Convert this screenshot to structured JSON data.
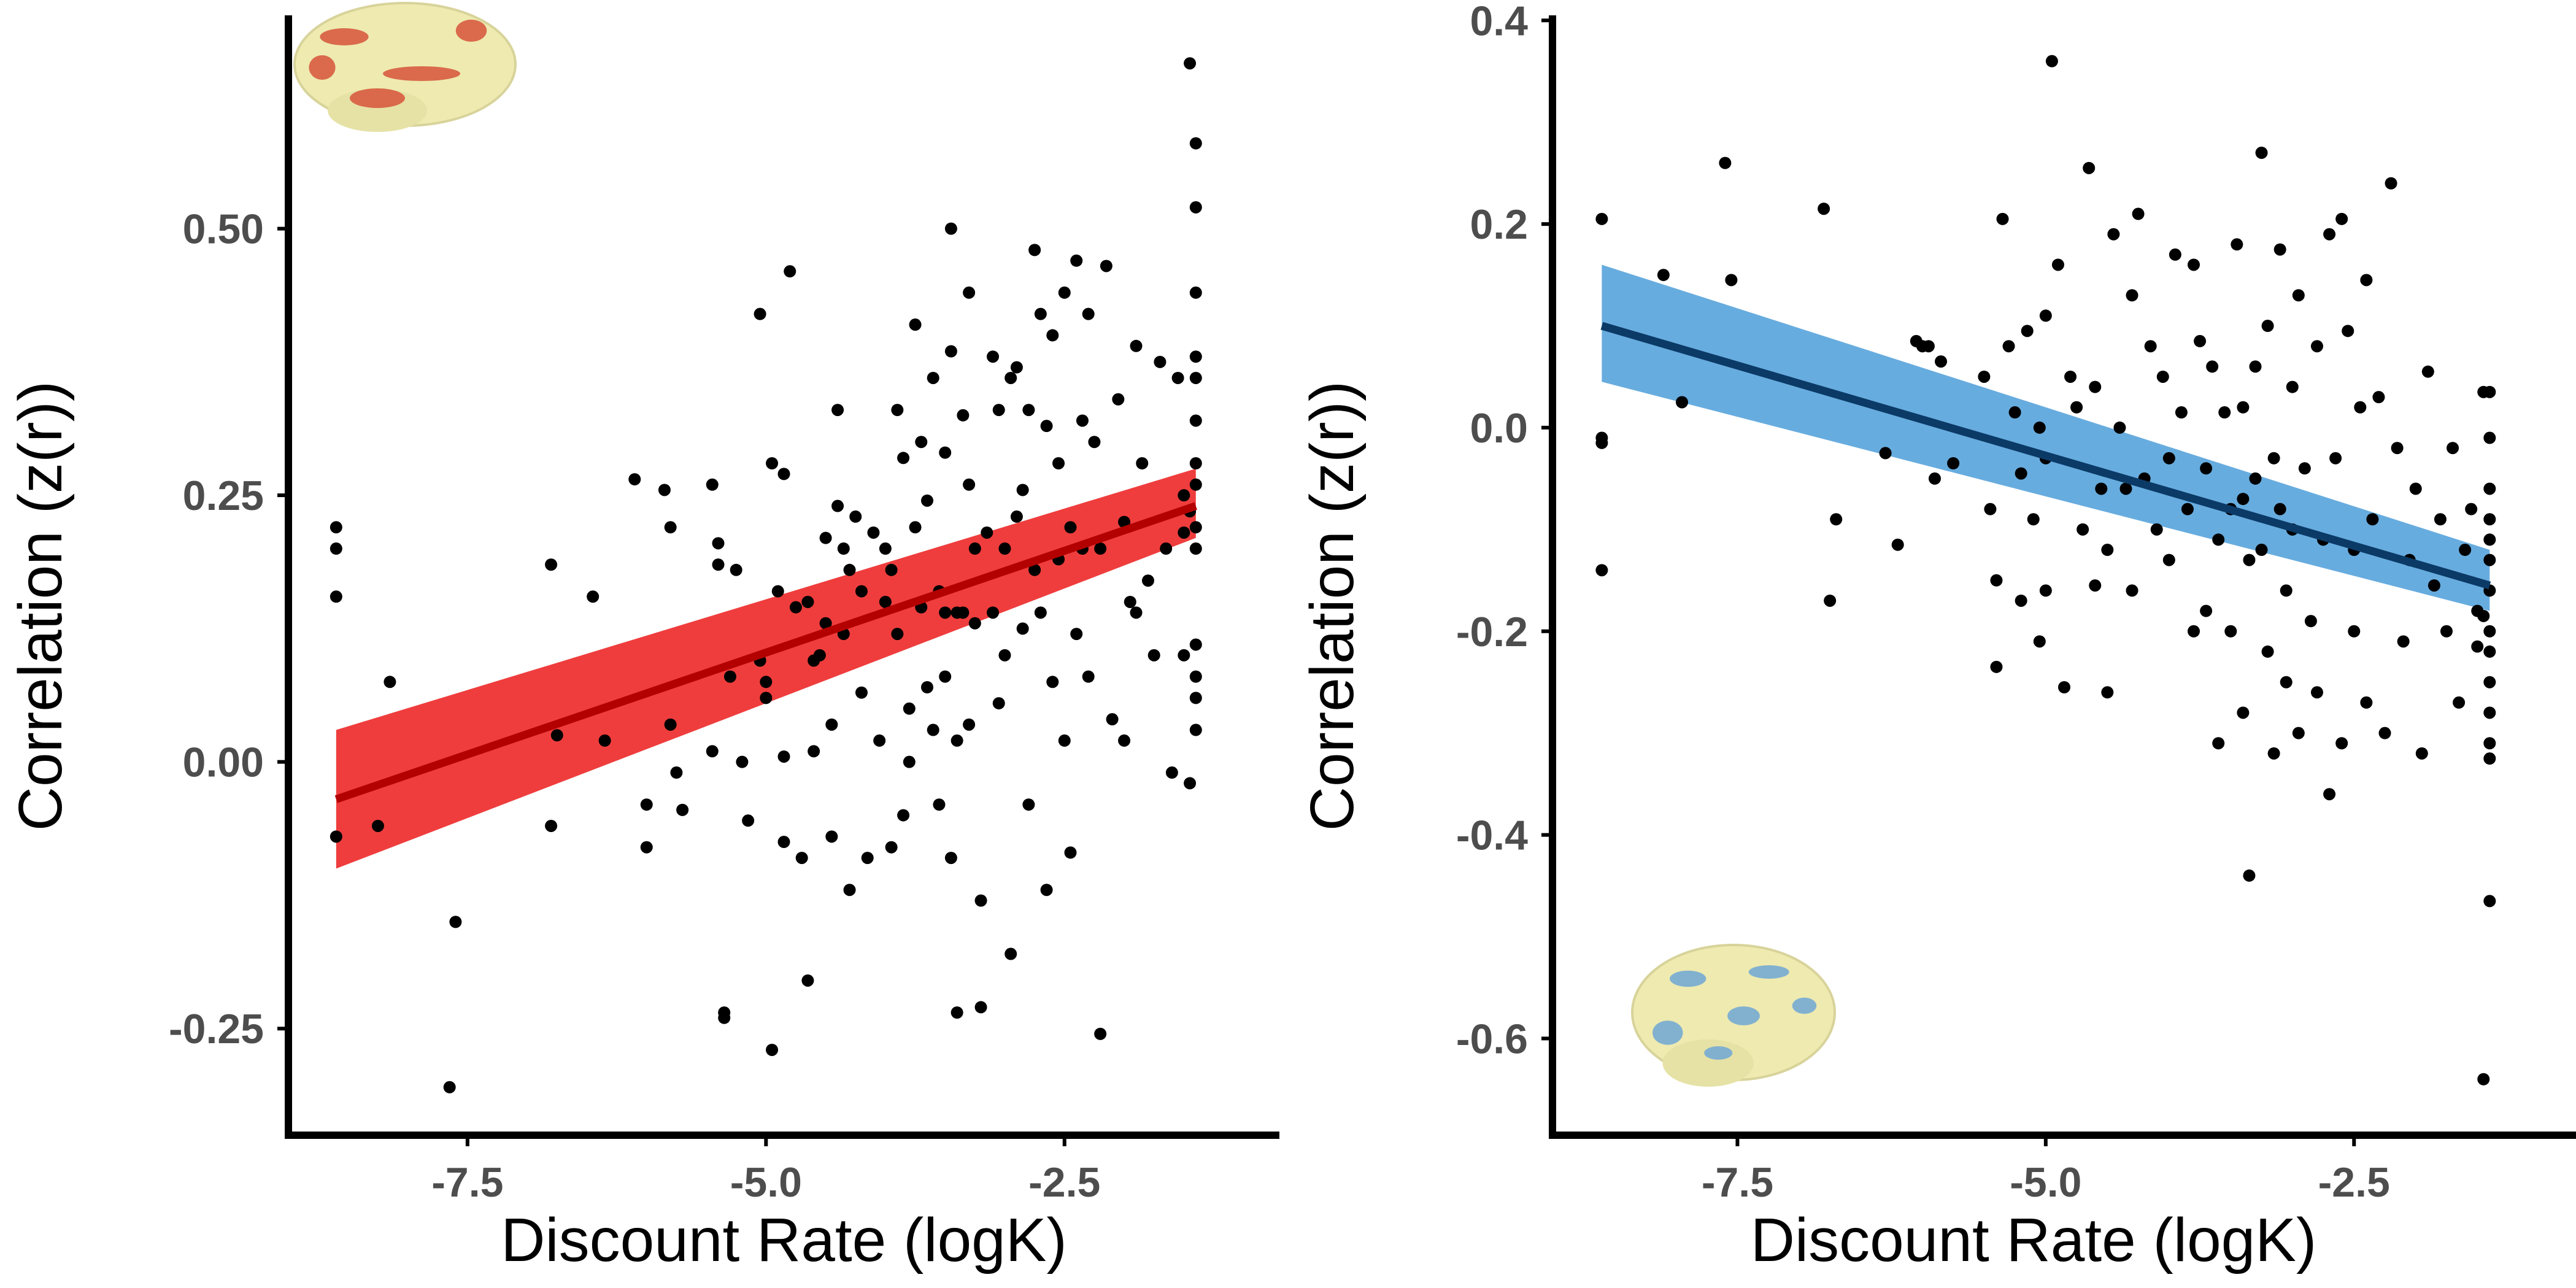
{
  "chart_data": [
    {
      "type": "scatter",
      "panel": "left",
      "xlabel": "Discount Rate (logK)",
      "ylabel": "Correlation (z(r))",
      "xlim": [
        -9.0,
        -0.7
      ],
      "ylim": [
        -0.35,
        0.7
      ],
      "xticks": [
        -7.5,
        -5.0,
        -2.5
      ],
      "xtick_labels": [
        "-7.5",
        "-5.0",
        "-2.5"
      ],
      "yticks": [
        -0.25,
        0.0,
        0.25,
        0.5
      ],
      "ytick_labels": [
        "-0.25",
        "0.00",
        "0.25",
        "0.50"
      ],
      "point_color": "#000000",
      "line_color": "#b30000",
      "band_color": "#ee2c2c",
      "brain_icon": "brain-surface-red-activation",
      "fit": {
        "x": [
          -8.6,
          -1.4
        ],
        "y": [
          -0.035,
          0.24
        ],
        "ci_lo": [
          -0.1,
          0.21
        ],
        "ci_hi": [
          0.03,
          0.275
        ]
      },
      "points": [
        [
          -8.6,
          0.22
        ],
        [
          -8.6,
          0.2
        ],
        [
          -8.6,
          0.155
        ],
        [
          -8.6,
          -0.07
        ],
        [
          -8.15,
          0.075
        ],
        [
          -8.25,
          -0.06
        ],
        [
          -7.6,
          -0.15
        ],
        [
          -7.65,
          -0.305
        ],
        [
          -6.8,
          0.185
        ],
        [
          -6.75,
          0.025
        ],
        [
          -6.8,
          -0.06
        ],
        [
          -6.45,
          0.155
        ],
        [
          -6.35,
          0.02
        ],
        [
          -6.1,
          0.265
        ],
        [
          -6.0,
          -0.04
        ],
        [
          -6.0,
          -0.08
        ],
        [
          -5.85,
          0.255
        ],
        [
          -5.8,
          0.22
        ],
        [
          -5.8,
          0.035
        ],
        [
          -5.75,
          -0.01
        ],
        [
          -5.7,
          -0.045
        ],
        [
          -5.45,
          0.26
        ],
        [
          -5.4,
          0.205
        ],
        [
          -5.4,
          0.185
        ],
        [
          -5.45,
          0.01
        ],
        [
          -5.35,
          -0.235
        ],
        [
          -5.35,
          -0.24
        ],
        [
          -5.3,
          0.08
        ],
        [
          -5.25,
          0.18
        ],
        [
          -5.2,
          0.0
        ],
        [
          -5.15,
          -0.055
        ],
        [
          -5.05,
          0.42
        ],
        [
          -5.05,
          0.095
        ],
        [
          -5.0,
          0.075
        ],
        [
          -5.0,
          0.06
        ],
        [
          -4.95,
          0.28
        ],
        [
          -4.95,
          -0.27
        ],
        [
          -4.9,
          0.16
        ],
        [
          -4.85,
          0.27
        ],
        [
          -4.85,
          0.005
        ],
        [
          -4.85,
          -0.075
        ],
        [
          -4.8,
          0.46
        ],
        [
          -4.75,
          0.145
        ],
        [
          -4.7,
          -0.09
        ],
        [
          -4.65,
          0.15
        ],
        [
          -4.65,
          -0.205
        ],
        [
          -4.6,
          0.095
        ],
        [
          -4.6,
          0.01
        ],
        [
          -4.55,
          0.1
        ],
        [
          -4.5,
          0.21
        ],
        [
          -4.5,
          0.13
        ],
        [
          -4.45,
          0.035
        ],
        [
          -4.45,
          -0.07
        ],
        [
          -4.4,
          0.24
        ],
        [
          -4.4,
          0.33
        ],
        [
          -4.35,
          0.2
        ],
        [
          -4.35,
          0.12
        ],
        [
          -4.3,
          0.18
        ],
        [
          -4.3,
          -0.12
        ],
        [
          -4.25,
          0.23
        ],
        [
          -4.2,
          0.16
        ],
        [
          -4.2,
          0.065
        ],
        [
          -4.15,
          -0.09
        ],
        [
          -4.1,
          0.215
        ],
        [
          -4.05,
          0.02
        ],
        [
          -4.0,
          0.15
        ],
        [
          -4.0,
          0.2
        ],
        [
          -3.95,
          0.18
        ],
        [
          -3.95,
          -0.08
        ],
        [
          -3.9,
          0.33
        ],
        [
          -3.9,
          0.12
        ],
        [
          -3.85,
          0.285
        ],
        [
          -3.85,
          -0.05
        ],
        [
          -3.8,
          0.05
        ],
        [
          -3.8,
          0.0
        ],
        [
          -3.75,
          0.22
        ],
        [
          -3.75,
          0.41
        ],
        [
          -3.7,
          0.3
        ],
        [
          -3.7,
          0.145
        ],
        [
          -3.65,
          0.245
        ],
        [
          -3.65,
          0.07
        ],
        [
          -3.6,
          0.03
        ],
        [
          -3.6,
          0.36
        ],
        [
          -3.55,
          0.16
        ],
        [
          -3.55,
          -0.04
        ],
        [
          -3.5,
          0.08
        ],
        [
          -3.5,
          0.29
        ],
        [
          -3.5,
          0.14
        ],
        [
          -3.45,
          0.5
        ],
        [
          -3.45,
          0.385
        ],
        [
          -3.45,
          -0.09
        ],
        [
          -3.4,
          0.14
        ],
        [
          -3.4,
          -0.235
        ],
        [
          -3.4,
          0.02
        ],
        [
          -3.35,
          0.325
        ],
        [
          -3.35,
          0.14
        ],
        [
          -3.3,
          0.44
        ],
        [
          -3.3,
          0.26
        ],
        [
          -3.3,
          0.035
        ],
        [
          -3.25,
          0.2
        ],
        [
          -3.25,
          0.13
        ],
        [
          -3.2,
          -0.13
        ],
        [
          -3.2,
          -0.23
        ],
        [
          -3.15,
          0.215
        ],
        [
          -3.1,
          0.38
        ],
        [
          -3.1,
          0.14
        ],
        [
          -3.05,
          0.055
        ],
        [
          -3.05,
          0.33
        ],
        [
          -3.0,
          0.2
        ],
        [
          -3.0,
          0.1
        ],
        [
          -2.95,
          0.36
        ],
        [
          -2.95,
          -0.18
        ],
        [
          -2.9,
          0.23
        ],
        [
          -2.9,
          0.37
        ],
        [
          -2.85,
          0.255
        ],
        [
          -2.85,
          0.125
        ],
        [
          -2.8,
          0.33
        ],
        [
          -2.8,
          -0.04
        ],
        [
          -2.75,
          0.18
        ],
        [
          -2.75,
          0.48
        ],
        [
          -2.7,
          0.42
        ],
        [
          -2.7,
          0.14
        ],
        [
          -2.65,
          0.315
        ],
        [
          -2.65,
          -0.12
        ],
        [
          -2.6,
          0.4
        ],
        [
          -2.6,
          0.075
        ],
        [
          -2.55,
          0.28
        ],
        [
          -2.55,
          0.19
        ],
        [
          -2.5,
          0.44
        ],
        [
          -2.5,
          0.02
        ],
        [
          -2.45,
          0.22
        ],
        [
          -2.45,
          -0.085
        ],
        [
          -2.4,
          0.47
        ],
        [
          -2.4,
          0.12
        ],
        [
          -2.35,
          0.32
        ],
        [
          -2.35,
          0.2
        ],
        [
          -2.3,
          0.42
        ],
        [
          -2.3,
          0.08
        ],
        [
          -2.25,
          0.3
        ],
        [
          -2.2,
          0.2
        ],
        [
          -2.2,
          -0.255
        ],
        [
          -2.15,
          0.465
        ],
        [
          -2.1,
          0.04
        ],
        [
          -2.05,
          0.34
        ],
        [
          -2.0,
          0.225
        ],
        [
          -2.0,
          0.02
        ],
        [
          -1.95,
          0.15
        ],
        [
          -1.9,
          0.14
        ],
        [
          -1.9,
          0.39
        ],
        [
          -1.85,
          0.28
        ],
        [
          -1.8,
          0.17
        ],
        [
          -1.75,
          0.1
        ],
        [
          -1.7,
          0.375
        ],
        [
          -1.65,
          0.2
        ],
        [
          -1.6,
          -0.01
        ],
        [
          -1.55,
          0.36
        ],
        [
          -1.5,
          0.215
        ],
        [
          -1.5,
          0.1
        ],
        [
          -1.45,
          0.655
        ],
        [
          -1.4,
          0.58
        ],
        [
          -1.4,
          0.52
        ],
        [
          -1.4,
          0.44
        ],
        [
          -1.4,
          0.38
        ],
        [
          -1.4,
          0.36
        ],
        [
          -1.4,
          0.32
        ],
        [
          -1.4,
          0.28
        ],
        [
          -1.4,
          0.26
        ],
        [
          -1.4,
          0.22
        ],
        [
          -1.4,
          0.2
        ],
        [
          -1.4,
          0.11
        ],
        [
          -1.4,
          0.08
        ],
        [
          -1.4,
          0.06
        ],
        [
          -1.4,
          0.03
        ],
        [
          -1.5,
          0.25
        ],
        [
          -1.45,
          0.235
        ],
        [
          -1.45,
          -0.02
        ]
      ]
    },
    {
      "type": "scatter",
      "panel": "right",
      "xlabel": "Discount Rate (logK)",
      "ylabel": "Correlation (z(r))",
      "xlim": [
        -9.0,
        -0.7
      ],
      "ylim": [
        -0.695,
        0.405
      ],
      "xticks": [
        -7.5,
        -5.0,
        -2.5
      ],
      "xtick_labels": [
        "-7.5",
        "-5.0",
        "-2.5"
      ],
      "yticks": [
        -0.6,
        -0.4,
        -0.2,
        0.0,
        0.2,
        0.4
      ],
      "ytick_labels": [
        "-0.6",
        "-0.4",
        "-0.2",
        "0.0",
        "0.2",
        "0.4"
      ],
      "point_color": "#000000",
      "line_color": "#0b3a66",
      "band_color": "#5aa5dc",
      "brain_icon": "brain-surface-blue-activation",
      "fit": {
        "x": [
          -8.6,
          -1.4
        ],
        "y": [
          0.1,
          -0.155
        ],
        "ci_lo": [
          0.045,
          -0.18
        ],
        "ci_hi": [
          0.16,
          -0.12
        ]
      },
      "points": [
        [
          -8.6,
          0.205
        ],
        [
          -8.6,
          -0.01
        ],
        [
          -8.6,
          -0.015
        ],
        [
          -8.6,
          -0.14
        ],
        [
          -8.1,
          0.15
        ],
        [
          -7.95,
          0.025
        ],
        [
          -7.6,
          0.26
        ],
        [
          -7.55,
          0.145
        ],
        [
          -6.8,
          0.215
        ],
        [
          -6.75,
          -0.17
        ],
        [
          -6.7,
          -0.09
        ],
        [
          -6.3,
          -0.025
        ],
        [
          -6.2,
          -0.115
        ],
        [
          -6.05,
          0.085
        ],
        [
          -6.0,
          0.08
        ],
        [
          -5.95,
          0.08
        ],
        [
          -5.9,
          -0.05
        ],
        [
          -5.85,
          0.065
        ],
        [
          -5.75,
          -0.035
        ],
        [
          -5.5,
          0.05
        ],
        [
          -5.45,
          -0.08
        ],
        [
          -5.4,
          -0.15
        ],
        [
          -5.4,
          -0.235
        ],
        [
          -5.35,
          0.205
        ],
        [
          -5.3,
          0.08
        ],
        [
          -5.25,
          0.015
        ],
        [
          -5.2,
          -0.17
        ],
        [
          -5.2,
          -0.045
        ],
        [
          -5.15,
          0.095
        ],
        [
          -5.1,
          -0.09
        ],
        [
          -5.05,
          0.0
        ],
        [
          -5.05,
          -0.21
        ],
        [
          -5.0,
          0.11
        ],
        [
          -5.0,
          -0.03
        ],
        [
          -5.0,
          -0.16
        ],
        [
          -4.95,
          0.36
        ],
        [
          -4.9,
          0.16
        ],
        [
          -4.85,
          -0.255
        ],
        [
          -4.8,
          0.05
        ],
        [
          -4.75,
          0.02
        ],
        [
          -4.7,
          -0.1
        ],
        [
          -4.65,
          0.255
        ],
        [
          -4.6,
          0.04
        ],
        [
          -4.6,
          -0.155
        ],
        [
          -4.55,
          -0.06
        ],
        [
          -4.5,
          -0.26
        ],
        [
          -4.5,
          -0.12
        ],
        [
          -4.45,
          0.19
        ],
        [
          -4.4,
          0.0
        ],
        [
          -4.35,
          -0.06
        ],
        [
          -4.3,
          0.13
        ],
        [
          -4.3,
          -0.16
        ],
        [
          -4.25,
          0.21
        ],
        [
          -4.2,
          -0.05
        ],
        [
          -4.15,
          0.08
        ],
        [
          -4.1,
          -0.1
        ],
        [
          -4.05,
          0.05
        ],
        [
          -4.0,
          -0.03
        ],
        [
          -4.0,
          -0.13
        ],
        [
          -3.95,
          0.17
        ],
        [
          -3.9,
          0.015
        ],
        [
          -3.85,
          -0.08
        ],
        [
          -3.8,
          0.16
        ],
        [
          -3.8,
          -0.2
        ],
        [
          -3.75,
          0.085
        ],
        [
          -3.7,
          -0.04
        ],
        [
          -3.7,
          -0.18
        ],
        [
          -3.65,
          0.06
        ],
        [
          -3.6,
          -0.11
        ],
        [
          -3.6,
          -0.31
        ],
        [
          -3.55,
          0.015
        ],
        [
          -3.5,
          -0.2
        ],
        [
          -3.5,
          -0.08
        ],
        [
          -3.45,
          0.18
        ],
        [
          -3.4,
          0.02
        ],
        [
          -3.4,
          -0.07
        ],
        [
          -3.4,
          -0.28
        ],
        [
          -3.35,
          -0.13
        ],
        [
          -3.35,
          -0.44
        ],
        [
          -3.3,
          0.06
        ],
        [
          -3.3,
          -0.05
        ],
        [
          -3.25,
          0.27
        ],
        [
          -3.25,
          -0.12
        ],
        [
          -3.2,
          0.1
        ],
        [
          -3.2,
          -0.22
        ],
        [
          -3.15,
          -0.03
        ],
        [
          -3.15,
          -0.32
        ],
        [
          -3.1,
          0.175
        ],
        [
          -3.1,
          -0.08
        ],
        [
          -3.05,
          -0.16
        ],
        [
          -3.05,
          -0.25
        ],
        [
          -3.0,
          0.04
        ],
        [
          -3.0,
          -0.1
        ],
        [
          -2.95,
          0.13
        ],
        [
          -2.95,
          -0.3
        ],
        [
          -2.9,
          -0.04
        ],
        [
          -2.85,
          -0.19
        ],
        [
          -2.8,
          0.08
        ],
        [
          -2.8,
          -0.26
        ],
        [
          -2.75,
          -0.11
        ],
        [
          -2.7,
          0.19
        ],
        [
          -2.7,
          -0.36
        ],
        [
          -2.65,
          -0.03
        ],
        [
          -2.6,
          0.205
        ],
        [
          -2.6,
          -0.31
        ],
        [
          -2.55,
          0.095
        ],
        [
          -2.5,
          -0.12
        ],
        [
          -2.5,
          -0.2
        ],
        [
          -2.45,
          0.02
        ],
        [
          -2.4,
          0.145
        ],
        [
          -2.4,
          -0.27
        ],
        [
          -2.35,
          -0.09
        ],
        [
          -2.3,
          0.03
        ],
        [
          -2.25,
          -0.3
        ],
        [
          -2.2,
          0.24
        ],
        [
          -2.15,
          -0.02
        ],
        [
          -2.1,
          -0.21
        ],
        [
          -2.05,
          -0.13
        ],
        [
          -2.0,
          -0.06
        ],
        [
          -1.95,
          -0.32
        ],
        [
          -1.9,
          0.055
        ],
        [
          -1.85,
          -0.155
        ],
        [
          -1.8,
          -0.09
        ],
        [
          -1.75,
          -0.2
        ],
        [
          -1.7,
          -0.02
        ],
        [
          -1.65,
          -0.27
        ],
        [
          -1.6,
          -0.12
        ],
        [
          -1.55,
          -0.08
        ],
        [
          -1.5,
          -0.18
        ],
        [
          -1.45,
          -0.64
        ],
        [
          -1.4,
          0.035
        ],
        [
          -1.4,
          -0.01
        ],
        [
          -1.4,
          -0.06
        ],
        [
          -1.4,
          -0.09
        ],
        [
          -1.4,
          -0.11
        ],
        [
          -1.4,
          -0.13
        ],
        [
          -1.4,
          -0.16
        ],
        [
          -1.4,
          -0.2
        ],
        [
          -1.4,
          -0.22
        ],
        [
          -1.4,
          -0.25
        ],
        [
          -1.4,
          -0.28
        ],
        [
          -1.4,
          -0.31
        ],
        [
          -1.4,
          -0.325
        ],
        [
          -1.4,
          -0.465
        ],
        [
          -1.45,
          0.035
        ],
        [
          -1.5,
          -0.215
        ],
        [
          -1.45,
          -0.185
        ]
      ]
    }
  ]
}
